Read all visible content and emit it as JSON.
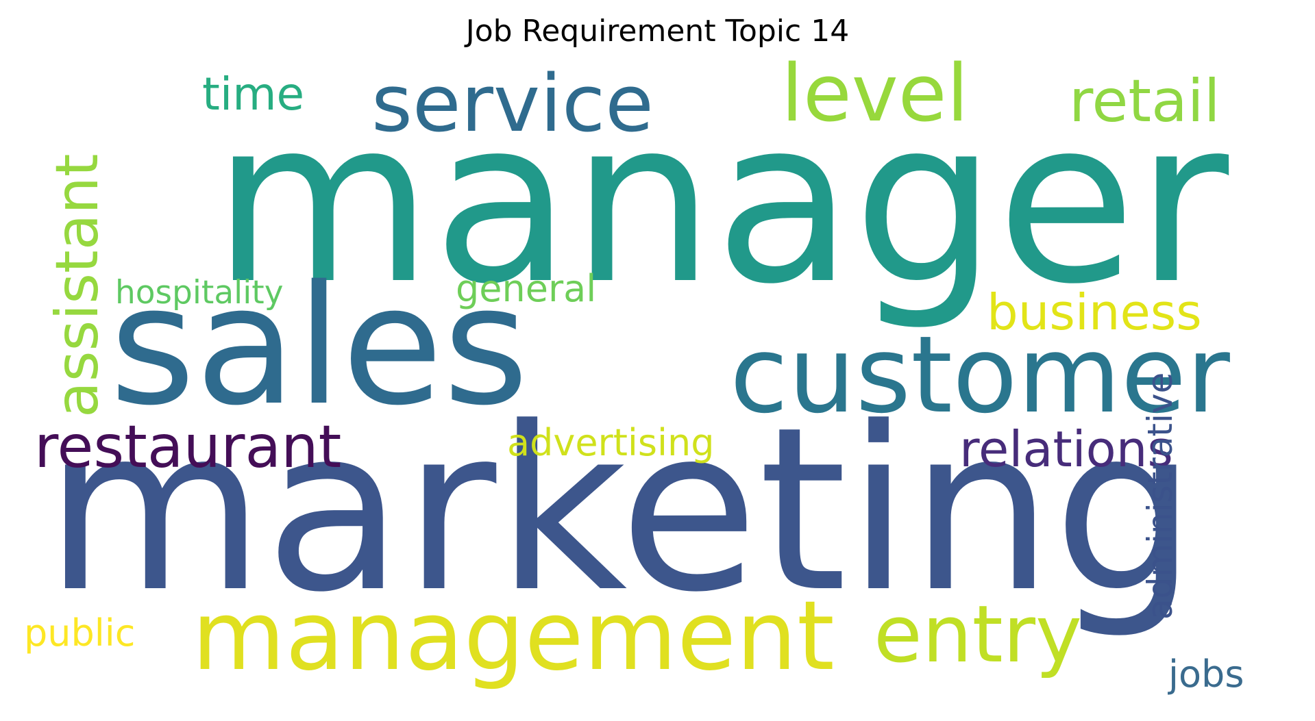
{
  "title": "Job Requirement Topic 14",
  "words": [
    {
      "text": "manager",
      "color": "#21998a"
    },
    {
      "text": "marketing",
      "color": "#3d568c"
    },
    {
      "text": "sales",
      "color": "#2f6b8e"
    },
    {
      "text": "customer",
      "color": "#2a768e"
    },
    {
      "text": "management",
      "color": "#e0e020"
    },
    {
      "text": "service",
      "color": "#2f6b8e"
    },
    {
      "text": "level",
      "color": "#97d83c"
    },
    {
      "text": "retail",
      "color": "#90d743"
    },
    {
      "text": "entry",
      "color": "#c0df25"
    },
    {
      "text": "assistant",
      "color": "#96d83f"
    },
    {
      "text": "restaurant",
      "color": "#440e57"
    },
    {
      "text": "relations",
      "color": "#472c7a"
    },
    {
      "text": "business",
      "color": "#e2e418"
    },
    {
      "text": "advertising",
      "color": "#d0e11c"
    },
    {
      "text": "time",
      "color": "#27ad81"
    },
    {
      "text": "general",
      "color": "#6ece58"
    },
    {
      "text": "hospitality",
      "color": "#5ec962"
    },
    {
      "text": "administrative",
      "color": "#3b528b"
    },
    {
      "text": "public",
      "color": "#fde725"
    },
    {
      "text": "jobs",
      "color": "#3a6b8e"
    }
  ]
}
